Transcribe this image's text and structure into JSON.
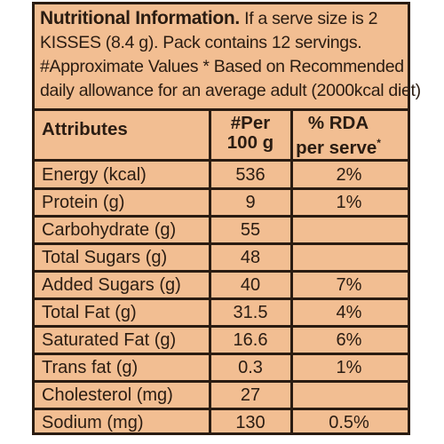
{
  "intro": {
    "lead": "Nutritional Information.",
    "line1_rest": " If a serve size is 2",
    "line2": "KISSES (8.4 g). Pack contains 12 servings.",
    "line3": "#Approximate Values * Based on Recommended",
    "line4": "daily allowance for an average adult (2000kcal diet)"
  },
  "table": {
    "headers": {
      "attributes": "Attributes",
      "per_line1": "#Per",
      "per_line2": "100 g",
      "rda_line1": "% RDA",
      "rda_line2": "per serve",
      "rda_star": "*"
    },
    "rows": [
      {
        "attribute": "Energy (kcal)",
        "per100g": "536",
        "rda": "2%"
      },
      {
        "attribute": "Protein (g)",
        "per100g": "9",
        "rda": "1%"
      },
      {
        "attribute": "Carbohydrate (g)",
        "per100g": "55",
        "rda": ""
      },
      {
        "attribute": "Total Sugars (g)",
        "per100g": "48",
        "rda": ""
      },
      {
        "attribute": "Added Sugars (g)",
        "per100g": "40",
        "rda": "7%"
      },
      {
        "attribute": "Total Fat (g)",
        "per100g": "31.5",
        "rda": "4%"
      },
      {
        "attribute": "Saturated Fat (g)",
        "per100g": "16.6",
        "rda": "6%"
      },
      {
        "attribute": "Trans fat (g)",
        "per100g": "0.3",
        "rda": "1%"
      },
      {
        "attribute": "Cholesterol (mg)",
        "per100g": "27",
        "rda": ""
      },
      {
        "attribute": "Sodium (mg)",
        "per100g": "130",
        "rda": "0.5%"
      }
    ]
  },
  "colors": {
    "background": "#f2be92",
    "ink": "#2a1c12"
  }
}
